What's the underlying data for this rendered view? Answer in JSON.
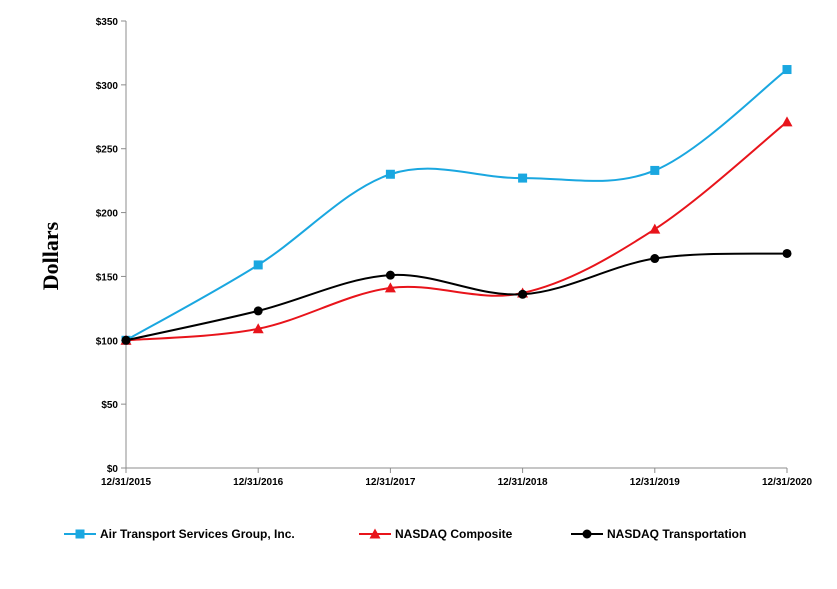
{
  "chart_data": {
    "type": "line",
    "title": "",
    "xlabel": "",
    "ylabel": "Dollars",
    "categories": [
      "12/31/2015",
      "12/31/2016",
      "12/31/2017",
      "12/31/2018",
      "12/31/2019",
      "12/31/2020"
    ],
    "ylim": [
      0,
      350
    ],
    "yticks": [
      0,
      50,
      100,
      150,
      200,
      250,
      300,
      350
    ],
    "ytick_labels": [
      "$0",
      "$50",
      "$100",
      "$150",
      "$200",
      "$250",
      "$300",
      "$350"
    ],
    "grid": false,
    "legend_position": "bottom",
    "series": [
      {
        "name": "Air Transport Services Group, Inc.",
        "color": "#1AA7E0",
        "marker": "square",
        "values": [
          100,
          159,
          230,
          227,
          233,
          312
        ]
      },
      {
        "name": "NASDAQ Composite",
        "color": "#E8141B",
        "marker": "triangle",
        "values": [
          100,
          109,
          141,
          137,
          187,
          271
        ]
      },
      {
        "name": "NASDAQ Transportation",
        "color": "#000000",
        "marker": "circle",
        "values": [
          100,
          123,
          151,
          136,
          164,
          168
        ]
      }
    ]
  }
}
